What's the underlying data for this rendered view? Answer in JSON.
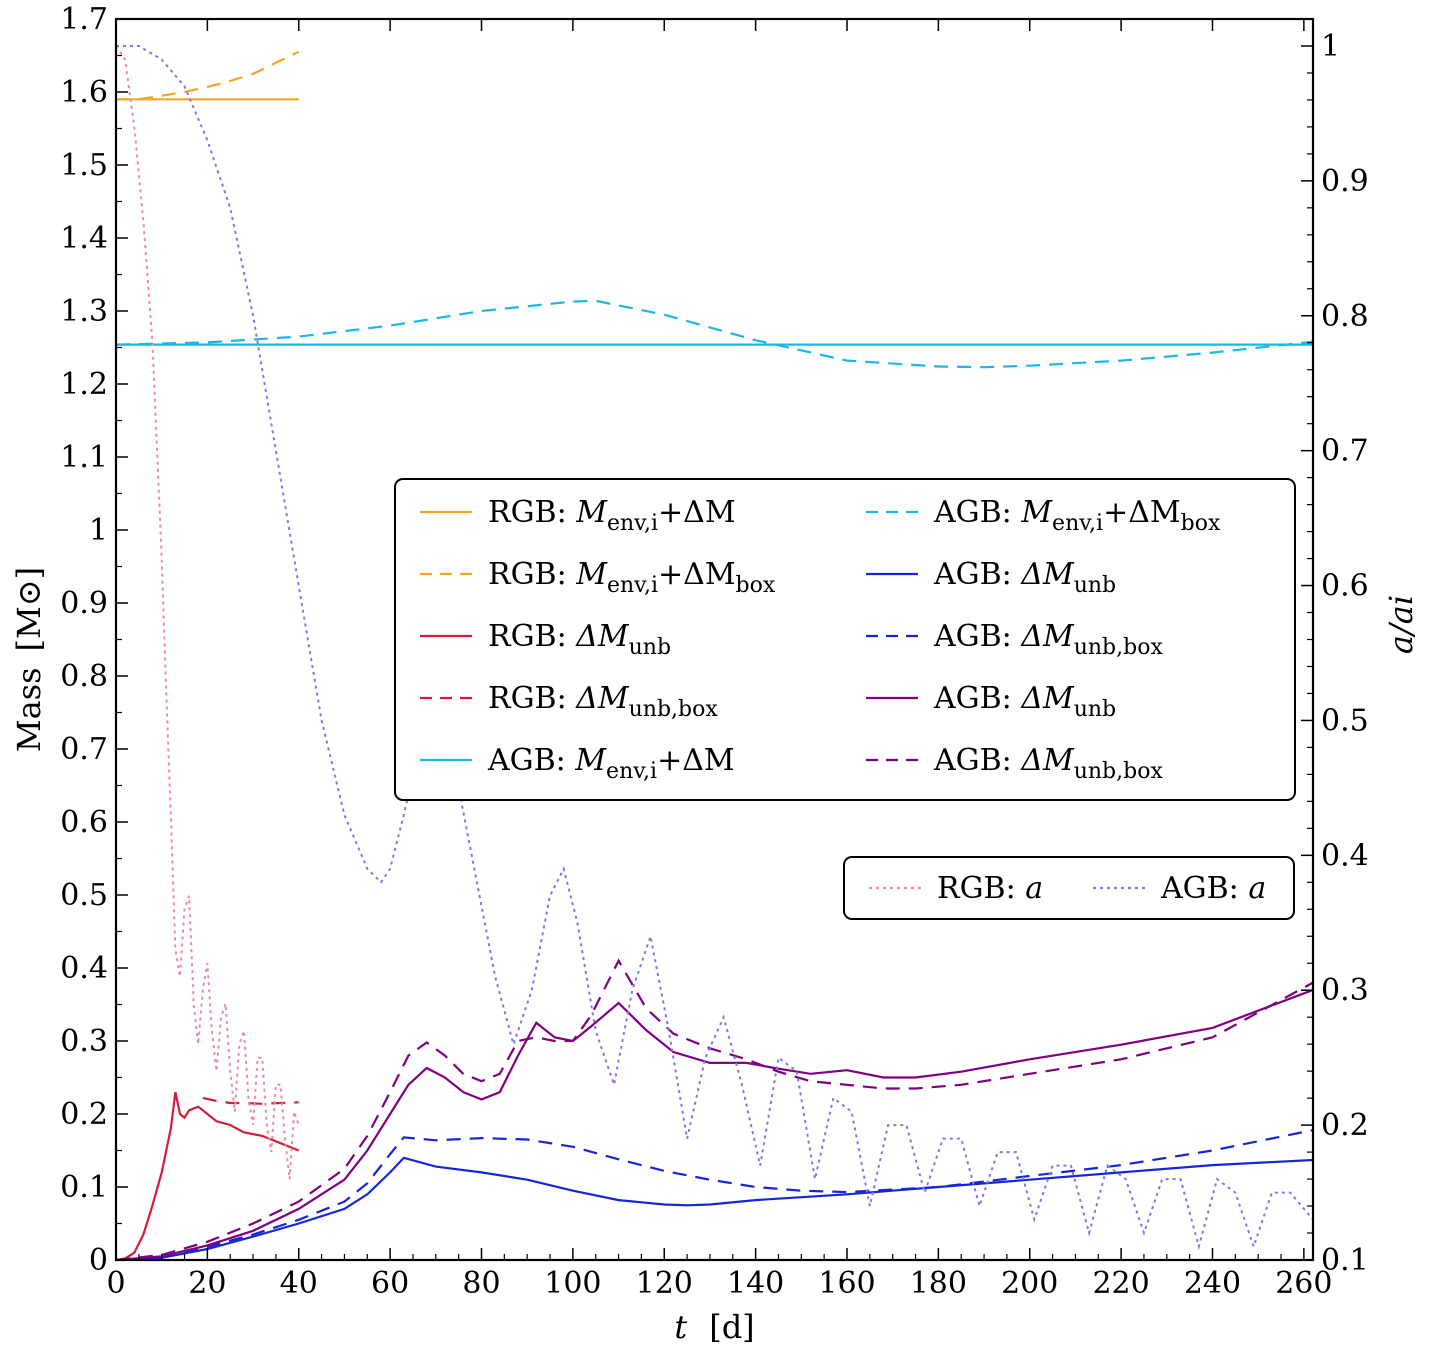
{
  "chart_data": {
    "type": "line",
    "xlabel": "t [d]",
    "xlabel_italic": "t",
    "xlabel_unit": "[d]",
    "ylabel": "Mass [M⊙]",
    "ylabel_text": "Mass",
    "ylabel_unit": "[M⊙]",
    "y2label": "a/ai",
    "xlim": [
      0,
      262
    ],
    "ylim": [
      0,
      1.7
    ],
    "y2lim": [
      0.1,
      1.02
    ],
    "xticks": [
      "0",
      "20",
      "40",
      "60",
      "80",
      "100",
      "120",
      "140",
      "160",
      "180",
      "200",
      "220",
      "240",
      "260"
    ],
    "yticks": [
      "0",
      "0.1",
      "0.2",
      "0.3",
      "0.4",
      "0.5",
      "0.6",
      "0.7",
      "0.8",
      "0.9",
      "1",
      "1.1",
      "1.2",
      "1.3",
      "1.4",
      "1.5",
      "1.6",
      "1.7"
    ],
    "y2ticks": [
      "0.1",
      "0.2",
      "0.3",
      "0.4",
      "0.5",
      "0.6",
      "0.7",
      "0.8",
      "0.9",
      "1"
    ],
    "grid": false,
    "legend_placement": "center-right",
    "series": [
      {
        "name": "RGB: Menv,i + ΔM",
        "label_prefix": "RGB: ",
        "math": "M",
        "sub": "env,i",
        "tail": "+ΔM",
        "tailsub": "",
        "color": "#f5a623",
        "dash": "solid",
        "axis": "left",
        "x": [
          0,
          40
        ],
        "y": [
          1.59,
          1.59
        ]
      },
      {
        "name": "RGB: Menv,i + ΔMbox",
        "label_prefix": "RGB: ",
        "math": "M",
        "sub": "env,i",
        "tail": "+ΔM",
        "tailsub": "box",
        "color": "#f5a623",
        "dash": "dashed",
        "axis": "left",
        "x": [
          0,
          5,
          10,
          15,
          20,
          25,
          30,
          35,
          40
        ],
        "y": [
          1.59,
          1.59,
          1.595,
          1.6,
          1.607,
          1.615,
          1.625,
          1.64,
          1.655
        ]
      },
      {
        "name": "RGB: ΔMunb",
        "label_prefix": "RGB: ",
        "math": "ΔM",
        "sub": "unb",
        "tail": "",
        "tailsub": "",
        "color": "#d81b3c",
        "dash": "solid",
        "axis": "left",
        "x": [
          0,
          2,
          4,
          6,
          8,
          10,
          12,
          13,
          14,
          15,
          16,
          18,
          20,
          22,
          25,
          28,
          32,
          36,
          40
        ],
        "y": [
          0,
          0.002,
          0.01,
          0.035,
          0.075,
          0.12,
          0.18,
          0.23,
          0.2,
          0.195,
          0.205,
          0.21,
          0.2,
          0.19,
          0.185,
          0.175,
          0.17,
          0.16,
          0.15
        ]
      },
      {
        "name": "RGB: ΔMunb,box",
        "label_prefix": "RGB: ",
        "math": "ΔM",
        "sub": "unb,box",
        "tail": "",
        "tailsub": "",
        "color": "#d81b3c",
        "dash": "dashed",
        "axis": "left",
        "x": [
          19,
          22,
          25,
          28,
          32,
          36,
          40
        ],
        "y": [
          0.222,
          0.218,
          0.215,
          0.215,
          0.214,
          0.215,
          0.216
        ]
      },
      {
        "name": "AGB: Menv,i + ΔM",
        "label_prefix": "AGB: ",
        "math": "M",
        "sub": "env,i",
        "tail": "+ΔM",
        "tailsub": "",
        "color": "#1ab8e8",
        "dash": "solid",
        "axis": "left",
        "x": [
          0,
          262
        ],
        "y": [
          1.254,
          1.254
        ]
      },
      {
        "name": "AGB: Menv,i + ΔMbox",
        "label_prefix": "AGB: ",
        "math": "M",
        "sub": "env,i",
        "tail": "+ΔM",
        "tailsub": "box",
        "color": "#1ab8e8",
        "dash": "dashed",
        "axis": "left",
        "x": [
          0,
          20,
          40,
          60,
          80,
          100,
          105,
          120,
          140,
          160,
          180,
          190,
          200,
          220,
          240,
          262
        ],
        "y": [
          1.254,
          1.257,
          1.265,
          1.28,
          1.3,
          1.313,
          1.314,
          1.295,
          1.26,
          1.232,
          1.224,
          1.223,
          1.225,
          1.232,
          1.243,
          1.258
        ]
      },
      {
        "name": "AGB: ΔMunb",
        "label_prefix": "AGB: ",
        "math": "ΔM",
        "sub": "unb",
        "tail": "",
        "tailsub": "",
        "color": "#1526d9",
        "dash": "solid",
        "axis": "left",
        "x": [
          0,
          10,
          20,
          30,
          40,
          50,
          55,
          60,
          63,
          70,
          80,
          90,
          100,
          110,
          120,
          125,
          130,
          140,
          160,
          180,
          200,
          220,
          240,
          262
        ],
        "y": [
          0,
          0.003,
          0.015,
          0.032,
          0.05,
          0.07,
          0.09,
          0.12,
          0.14,
          0.128,
          0.12,
          0.11,
          0.095,
          0.082,
          0.076,
          0.075,
          0.076,
          0.082,
          0.09,
          0.1,
          0.11,
          0.12,
          0.13,
          0.137
        ]
      },
      {
        "name": "AGB: ΔMunb,box",
        "label_prefix": "AGB: ",
        "math": "ΔM",
        "sub": "unb,box",
        "tail": "",
        "tailsub": "",
        "color": "#1526d9",
        "dash": "dashed",
        "axis": "left",
        "x": [
          0,
          10,
          20,
          30,
          40,
          50,
          55,
          60,
          63,
          70,
          80,
          90,
          100,
          110,
          120,
          130,
          140,
          150,
          160,
          180,
          200,
          220,
          240,
          262
        ],
        "y": [
          0,
          0.004,
          0.018,
          0.035,
          0.055,
          0.08,
          0.105,
          0.145,
          0.168,
          0.164,
          0.167,
          0.165,
          0.155,
          0.138,
          0.122,
          0.11,
          0.1,
          0.095,
          0.093,
          0.1,
          0.115,
          0.13,
          0.15,
          0.178
        ]
      },
      {
        "name": "AGB: ΔMunb",
        "label_prefix": "AGB: ",
        "math": "ΔM",
        "sub": "unb",
        "tail": "",
        "tailsub": "",
        "color": "#800080",
        "dash": "solid",
        "axis": "left",
        "x": [
          0,
          10,
          20,
          30,
          40,
          50,
          55,
          60,
          64,
          68,
          72,
          76,
          80,
          84,
          88,
          92,
          96,
          100,
          104,
          110,
          116,
          122,
          130,
          138,
          145,
          152,
          160,
          168,
          175,
          185,
          200,
          220,
          240,
          262
        ],
        "y": [
          0,
          0.005,
          0.02,
          0.04,
          0.07,
          0.11,
          0.15,
          0.2,
          0.24,
          0.263,
          0.25,
          0.23,
          0.22,
          0.23,
          0.28,
          0.325,
          0.305,
          0.3,
          0.32,
          0.352,
          0.315,
          0.285,
          0.27,
          0.27,
          0.262,
          0.255,
          0.26,
          0.25,
          0.25,
          0.258,
          0.275,
          0.295,
          0.318,
          0.37
        ]
      },
      {
        "name": "AGB: ΔMunb,box",
        "label_prefix": "AGB: ",
        "math": "ΔM",
        "sub": "unb,box",
        "tail": "",
        "tailsub": "",
        "color": "#800080",
        "dash": "dashed",
        "axis": "left",
        "x": [
          0,
          10,
          20,
          30,
          40,
          50,
          55,
          60,
          64,
          68,
          72,
          76,
          80,
          84,
          88,
          92,
          96,
          100,
          104,
          110,
          116,
          122,
          130,
          138,
          145,
          152,
          160,
          168,
          175,
          185,
          200,
          220,
          240,
          262
        ],
        "y": [
          0,
          0.007,
          0.025,
          0.05,
          0.08,
          0.125,
          0.17,
          0.23,
          0.28,
          0.298,
          0.28,
          0.255,
          0.245,
          0.255,
          0.3,
          0.305,
          0.3,
          0.3,
          0.335,
          0.41,
          0.345,
          0.31,
          0.29,
          0.275,
          0.258,
          0.245,
          0.24,
          0.235,
          0.235,
          0.24,
          0.255,
          0.275,
          0.305,
          0.38
        ]
      },
      {
        "name": "RGB: a",
        "label_prefix": "RGB: ",
        "math": "a",
        "sub": "",
        "tail": "",
        "tailsub": "",
        "color": "#f08a9a",
        "dash": "dotted",
        "axis": "right",
        "x": [
          0,
          2,
          4,
          6,
          8,
          10,
          11,
          12,
          13,
          14,
          15,
          16,
          17,
          18,
          19,
          20,
          21,
          22,
          23,
          24,
          25,
          26,
          27,
          28,
          29,
          30,
          31,
          32,
          33,
          34,
          35,
          36,
          37,
          38,
          39,
          40
        ],
        "y": [
          1.0,
          0.99,
          0.94,
          0.87,
          0.78,
          0.62,
          0.52,
          0.43,
          0.33,
          0.31,
          0.36,
          0.37,
          0.29,
          0.26,
          0.3,
          0.32,
          0.27,
          0.24,
          0.28,
          0.29,
          0.24,
          0.21,
          0.26,
          0.27,
          0.22,
          0.2,
          0.25,
          0.25,
          0.2,
          0.18,
          0.23,
          0.23,
          0.19,
          0.16,
          0.21,
          0.2
        ]
      },
      {
        "name": "AGB: a",
        "label_prefix": "AGB: ",
        "math": "a",
        "sub": "",
        "tail": "",
        "tailsub": "",
        "color": "#7a7ae8",
        "dash": "dotted",
        "axis": "right",
        "x": [
          0,
          5,
          10,
          15,
          20,
          25,
          30,
          35,
          40,
          45,
          50,
          55,
          58,
          60,
          63,
          67,
          71,
          75,
          79,
          83,
          87,
          91,
          95,
          98,
          101,
          105,
          109,
          113,
          117,
          121,
          125,
          129,
          133,
          137,
          141,
          145,
          149,
          153,
          157,
          161,
          165,
          169,
          173,
          177,
          181,
          185,
          189,
          193,
          197,
          201,
          205,
          209,
          213,
          217,
          221,
          225,
          229,
          233,
          237,
          241,
          245,
          249,
          253,
          257,
          262
        ],
        "y": [
          1.0,
          1.0,
          0.99,
          0.97,
          0.93,
          0.88,
          0.8,
          0.7,
          0.6,
          0.5,
          0.43,
          0.39,
          0.38,
          0.39,
          0.43,
          0.49,
          0.5,
          0.45,
          0.38,
          0.31,
          0.26,
          0.3,
          0.37,
          0.39,
          0.35,
          0.27,
          0.23,
          0.3,
          0.34,
          0.27,
          0.19,
          0.25,
          0.28,
          0.23,
          0.17,
          0.25,
          0.24,
          0.16,
          0.22,
          0.21,
          0.14,
          0.2,
          0.2,
          0.15,
          0.19,
          0.19,
          0.14,
          0.18,
          0.18,
          0.13,
          0.17,
          0.17,
          0.12,
          0.17,
          0.16,
          0.12,
          0.16,
          0.16,
          0.11,
          0.16,
          0.15,
          0.11,
          0.15,
          0.15,
          0.13
        ]
      }
    ],
    "legends": [
      {
        "placement": "center-right",
        "columns": [
          [
            0,
            1,
            2,
            3,
            4
          ],
          [
            5,
            6,
            7,
            8,
            9
          ]
        ]
      },
      {
        "placement": "right",
        "columns": [
          [
            10
          ],
          [
            11
          ]
        ]
      }
    ]
  }
}
